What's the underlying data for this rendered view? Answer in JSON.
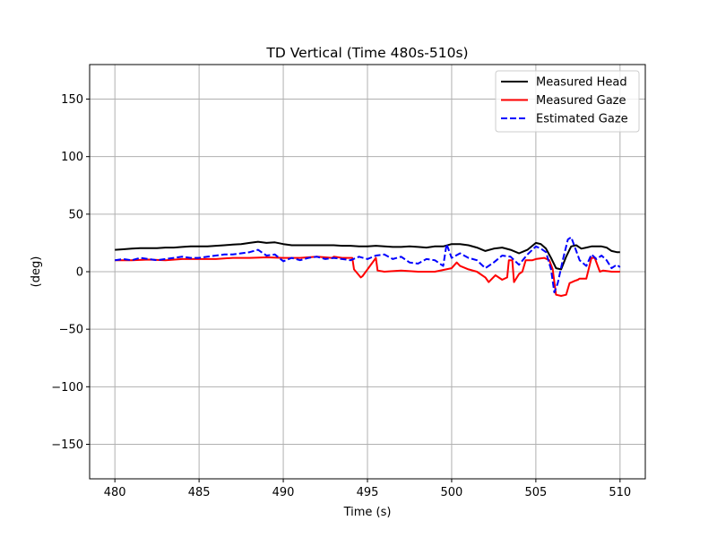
{
  "chart_data": {
    "type": "line",
    "title": "TD Vertical (Time 480s-510s)",
    "xlabel": "Time (s)",
    "ylabel": "(deg)",
    "xlim": [
      478.5,
      511.5
    ],
    "ylim": [
      -180,
      180
    ],
    "xticks": [
      480,
      485,
      490,
      495,
      500,
      505,
      510
    ],
    "yticks": [
      -150,
      -100,
      -50,
      0,
      50,
      100,
      150
    ],
    "xtick_labels": [
      "480",
      "485",
      "490",
      "495",
      "500",
      "505",
      "510"
    ],
    "ytick_labels": [
      "−150",
      "−100",
      "−50",
      "0",
      "50",
      "100",
      "150"
    ],
    "grid": true,
    "legend_position": "top-right",
    "series": [
      {
        "name": "Measured Head",
        "color": "#000000",
        "style": "solid",
        "x": [
          480,
          480.5,
          481,
          481.5,
          482,
          482.5,
          483,
          483.5,
          484,
          484.5,
          485,
          485.5,
          486,
          486.5,
          487,
          487.5,
          488,
          488.5,
          489,
          489.5,
          490,
          490.5,
          491,
          491.5,
          492,
          492.5,
          493,
          493.5,
          494,
          494.5,
          495,
          495.5,
          496,
          496.5,
          497,
          497.5,
          498,
          498.5,
          499,
          499.5,
          500,
          500.5,
          501,
          501.5,
          502,
          502.5,
          503,
          503.5,
          504,
          504.5,
          505,
          505.3,
          505.6,
          505.9,
          506.2,
          506.5,
          506.8,
          507.1,
          507.4,
          507.7,
          508,
          508.3,
          508.6,
          508.9,
          509.2,
          509.5,
          509.8,
          510
        ],
        "values": [
          19,
          19.5,
          20,
          20.5,
          20.5,
          20.5,
          21,
          21,
          21.5,
          22,
          22,
          22,
          22.5,
          23,
          23.5,
          24,
          25,
          26,
          25,
          25.5,
          24,
          23,
          23,
          23,
          23,
          23,
          23,
          22.5,
          22.5,
          22,
          22,
          22.5,
          22,
          21.5,
          21.5,
          22,
          21.5,
          21,
          22,
          22,
          24,
          24,
          23,
          21,
          18,
          20,
          21,
          19,
          16,
          19,
          25,
          24,
          20,
          12,
          3,
          2,
          13,
          22,
          23,
          20,
          21,
          22,
          22,
          22,
          21,
          18,
          17,
          17
        ]
      },
      {
        "name": "Measured Gaze",
        "color": "#ff0000",
        "style": "solid",
        "x": [
          480,
          481,
          482,
          483,
          484,
          485,
          486,
          487,
          488,
          489,
          490,
          491,
          492,
          492.9,
          493,
          493.5,
          494.1,
          494.2,
          494.6,
          494.7,
          495.5,
          495.6,
          496,
          497,
          498,
          499,
          500,
          500.3,
          500.5,
          501,
          501.5,
          502,
          502.2,
          502.6,
          503,
          503.3,
          503.4,
          503.6,
          503.7,
          504,
          504.2,
          504.4,
          504.5,
          504.8,
          505,
          505.5,
          505.8,
          506,
          506.2,
          506.5,
          506.8,
          507,
          507.3,
          507.5,
          507.6,
          508,
          508.3,
          508.5,
          508.8,
          509,
          509.5,
          510
        ],
        "values": [
          10,
          10,
          10.5,
          10,
          11,
          11,
          11,
          12,
          12,
          12.5,
          12,
          12,
          13,
          12,
          13,
          12,
          12,
          2,
          -5,
          -4,
          12,
          1,
          0,
          1,
          0,
          0,
          3,
          8,
          5,
          2,
          0,
          -5,
          -9,
          -3,
          -7,
          -5,
          10,
          10,
          -9,
          -2,
          0,
          10,
          10,
          10,
          11,
          12,
          10,
          2,
          -20,
          -21,
          -20,
          -10,
          -8,
          -7,
          -6,
          -6,
          12,
          12,
          0,
          1,
          0,
          0
        ]
      },
      {
        "name": "Estimated Gaze",
        "color": "#0000ff",
        "style": "dashed",
        "x": [
          480,
          480.5,
          481,
          481.5,
          482,
          482.5,
          483,
          483.5,
          484,
          484.5,
          485,
          485.5,
          486,
          486.5,
          487,
          487.5,
          488,
          488.5,
          489,
          489.5,
          490,
          490.5,
          491,
          491.5,
          492,
          492.5,
          493,
          493.5,
          494,
          494.5,
          495,
          495.5,
          496,
          496.5,
          497,
          497.5,
          498,
          498.5,
          499,
          499.5,
          499.7,
          500,
          500.5,
          501,
          501.5,
          502,
          502.5,
          503,
          503.5,
          504,
          504.5,
          505,
          505.3,
          505.6,
          505.9,
          506.1,
          506.3,
          506.6,
          506.9,
          507.1,
          507.3,
          507.6,
          508,
          508.3,
          508.6,
          508.9,
          509.2,
          509.5,
          509.8,
          510
        ],
        "values": [
          10,
          11,
          10,
          12,
          11,
          10,
          11,
          12,
          13,
          12,
          12,
          13,
          14,
          15,
          15,
          16,
          17,
          19,
          14,
          15,
          9,
          12,
          10,
          12,
          13,
          11,
          12,
          11,
          10,
          13,
          11,
          14,
          15,
          11,
          13,
          8,
          7,
          11,
          10,
          5,
          24,
          12,
          16,
          12,
          10,
          3,
          8,
          14,
          13,
          6,
          15,
          22,
          20,
          17,
          2,
          -18,
          -10,
          10,
          28,
          30,
          22,
          10,
          5,
          15,
          11,
          14,
          10,
          3,
          6,
          4
        ]
      }
    ]
  }
}
